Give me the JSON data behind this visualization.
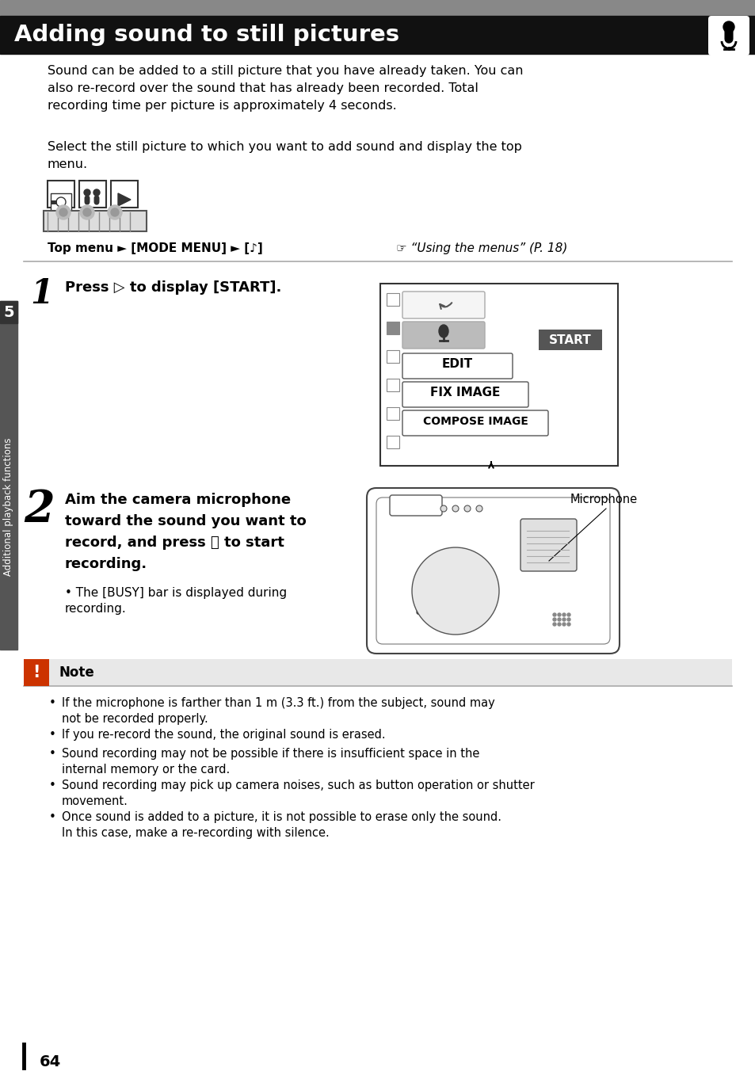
{
  "title": "Adding sound to still pictures",
  "title_bg": "#111111",
  "title_color": "#ffffff",
  "page_bg": "#ffffff",
  "page_number": "64",
  "tab_color": "#555555",
  "tab_text": "Additional playback functions",
  "tab_number": "5",
  "body_text_1": "Sound can be added to a still picture that you have already taken. You can\nalso re-record over the sound that has already been recorded. Total\nrecording time per picture is approximately 4 seconds.",
  "body_text_2": "Select the still picture to which you want to add sound and display the top\nmenu.",
  "step1_text": "Press ▷ to display [START].",
  "step2_text_bold": "Aim the camera microphone\ntoward the sound you want to\nrecord, and press Ⓞ to start\nrecording.",
  "step2_bullet": "The [BUSY] bar is displayed during\nrecording.",
  "note_title": "Note",
  "note_bullets": [
    "If the microphone is farther than 1 m (3.3 ft.) from the subject, sound may not be recorded properly.",
    "If you re-record the sound, the original sound is erased.",
    "Sound recording may not be possible if there is insufficient space in the internal memory or the card.",
    "Sound recording may pick up camera noises, such as button operation or shutter movement.",
    "Once sound is added to a picture, it is not possible to erase only the sound. In this case, make a re-recording with silence."
  ],
  "gray_bar_color": "#888888",
  "divider_color": "#aaaaaa",
  "note_icon_color": "#cc3300",
  "tab_rect_color": "#555555"
}
